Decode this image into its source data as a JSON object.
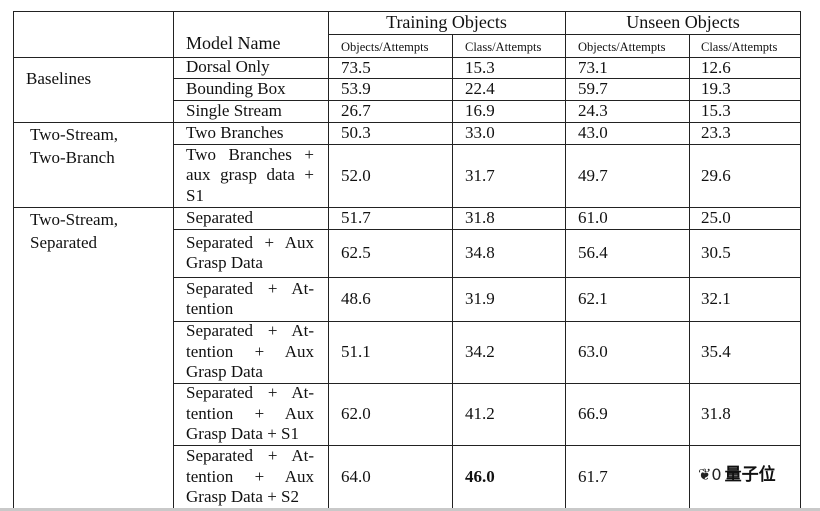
{
  "headers": {
    "training_objects": "Training Objects",
    "unseen_objects": "Unseen Objects",
    "model_name": "Model Name",
    "train_objects_attempts": "Objects/Attempts",
    "train_class_attempts": "Class/Attempts",
    "unseen_objects_attempts": "Objects/Attempts",
    "unseen_class_attempts": "Class/Attempts"
  },
  "groups": {
    "baselines": "Baselines",
    "two_stream_two_branch": [
      "Two-Stream,",
      "Two-Branch"
    ],
    "two_stream_separated": [
      "Two-Stream,",
      "Separated"
    ]
  },
  "rows": [
    {
      "model": [
        "Dorsal Only"
      ],
      "v": [
        "73.5",
        "15.3",
        "73.1",
        "12.6"
      ]
    },
    {
      "model": [
        "Bounding Box"
      ],
      "v": [
        "53.9",
        "22.4",
        "59.7",
        "19.3"
      ]
    },
    {
      "model": [
        "Single Stream"
      ],
      "v": [
        "26.7",
        "16.9",
        "24.3",
        "15.3"
      ]
    },
    {
      "model": [
        "Two Branches"
      ],
      "v": [
        "50.3",
        "33.0",
        "43.0",
        "23.3"
      ]
    },
    {
      "model": [
        "Two Branches +",
        "aux grasp data +",
        "S1"
      ],
      "v": [
        "52.0",
        "31.7",
        "49.7",
        "29.6"
      ]
    },
    {
      "model": [
        "Separated"
      ],
      "v": [
        "51.7",
        "31.8",
        "61.0",
        "25.0"
      ]
    },
    {
      "model": [
        "Separated + Aux",
        "Grasp Data"
      ],
      "v": [
        "62.5",
        "34.8",
        "56.4",
        "30.5"
      ]
    },
    {
      "model": [
        "Separated + At-",
        "tention"
      ],
      "v": [
        "48.6",
        "31.9",
        "62.1",
        "32.1"
      ]
    },
    {
      "model": [
        "Separated + At-",
        "tention + Aux",
        "Grasp Data"
      ],
      "v": [
        "51.1",
        "34.2",
        "63.0",
        "35.4"
      ]
    },
    {
      "model": [
        "Separated + At-",
        "tention + Aux",
        "Grasp Data + S1"
      ],
      "v": [
        "62.0",
        "41.2",
        "66.9",
        "31.8"
      ]
    },
    {
      "model": [
        "Separated + At-",
        "tention + Aux",
        "Grasp Data + S2"
      ],
      "v": [
        "64.0",
        "46.0",
        "61.7",
        ""
      ]
    }
  ],
  "watermark": {
    "text": "量子位",
    "mark": "❦0"
  }
}
